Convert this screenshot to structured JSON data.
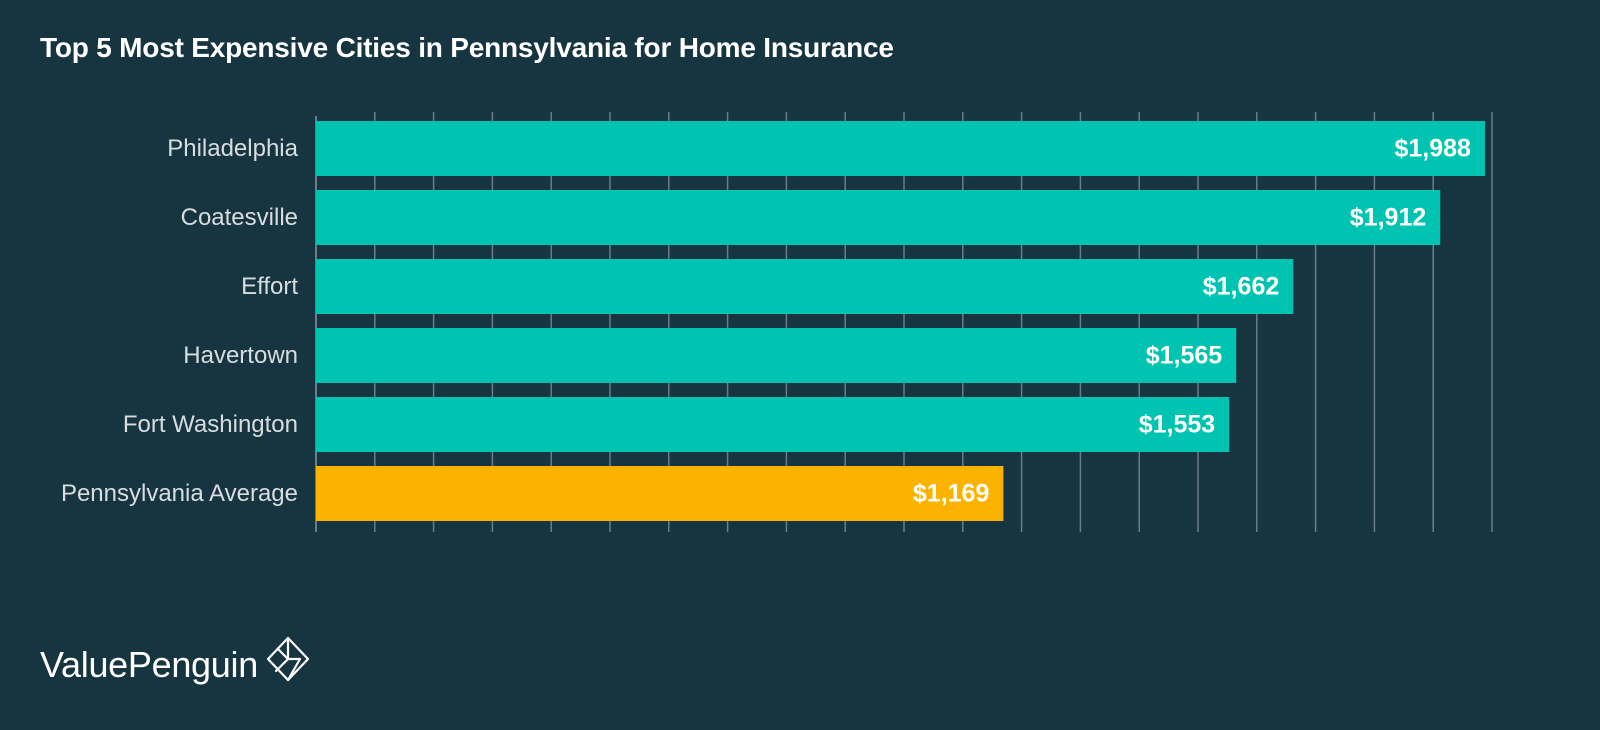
{
  "chart_data": {
    "type": "bar",
    "orientation": "horizontal",
    "title": "Top 5 Most Expensive Cities in Pennsylvania for Home Insurance",
    "categories": [
      "Philadelphia",
      "Coatesville",
      "Effort",
      "Havertown",
      "Fort Washington",
      "Pennsylvania Average"
    ],
    "values": [
      1988,
      1912,
      1662,
      1565,
      1553,
      1169
    ],
    "value_labels": [
      "$1,988",
      "$1,912",
      "$1,662",
      "$1,565",
      "$1,553",
      "$1,169"
    ],
    "bar_colors": [
      "#00c4b1",
      "#00c4b1",
      "#00c4b1",
      "#00c4b1",
      "#00c4b1",
      "#fbb300"
    ],
    "xlim": [
      0,
      2000
    ],
    "xlabel": "",
    "ylabel": "",
    "grid": true,
    "legend": "none"
  },
  "colors": {
    "background": "#173441",
    "highlight_bar": "#00c4b1",
    "average_bar": "#fbb300",
    "text": "#ffffff",
    "category_text": "#d8dde0",
    "gridline": "#6b7d86"
  },
  "branding": {
    "name": "ValuePenguin",
    "logo_icon": "penguin-diamond-icon"
  }
}
